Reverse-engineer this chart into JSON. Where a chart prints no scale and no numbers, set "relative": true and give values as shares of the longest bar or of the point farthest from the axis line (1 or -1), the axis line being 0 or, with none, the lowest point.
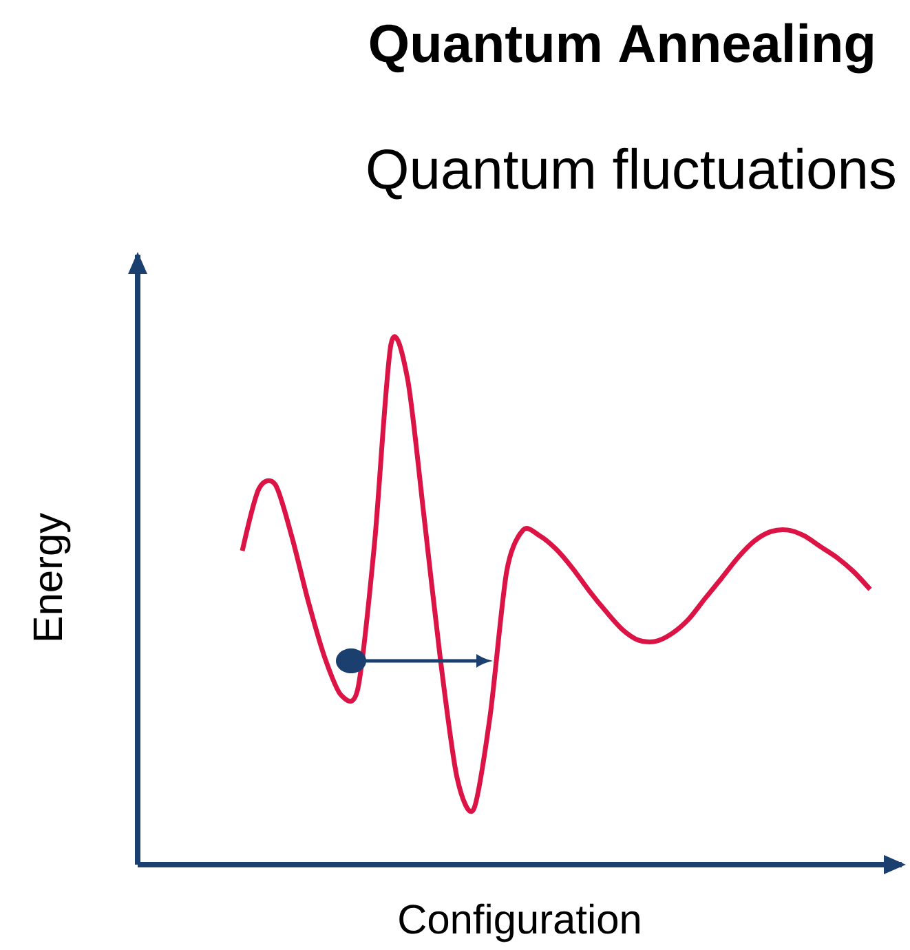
{
  "chart_data": {
    "type": "line",
    "title": "Quantum Annealing",
    "subtitle": "Quantum fluctuations",
    "xlabel": "Configuration",
    "ylabel": "Energy",
    "relative": true,
    "categories": [
      null,
      null,
      null,
      null,
      null,
      null,
      null,
      null,
      null,
      null,
      null,
      null,
      null,
      null,
      null,
      null,
      null,
      null,
      null,
      null,
      null,
      null,
      null,
      null,
      null,
      null,
      null,
      null,
      null,
      null,
      null,
      null,
      null,
      null,
      null,
      null,
      null,
      null,
      null
    ],
    "series": [
      {
        "color": "#dc1446",
        "values": [
          0.603,
          0.722,
          0.73,
          0.63,
          0.505,
          0.397,
          0.325,
          0.339,
          0.616,
          1.0,
          0.934,
          0.669,
          0.392,
          0.167,
          0.106,
          0.286,
          0.563,
          0.643,
          0.632,
          0.606,
          0.569,
          0.526,
          0.487,
          0.452,
          0.431,
          0.429,
          0.444,
          0.471,
          0.511,
          0.55,
          0.59,
          0.622,
          0.64,
          0.643,
          0.632,
          0.611,
          0.59,
          0.563,
          0.529
        ]
      }
    ]
  }
}
